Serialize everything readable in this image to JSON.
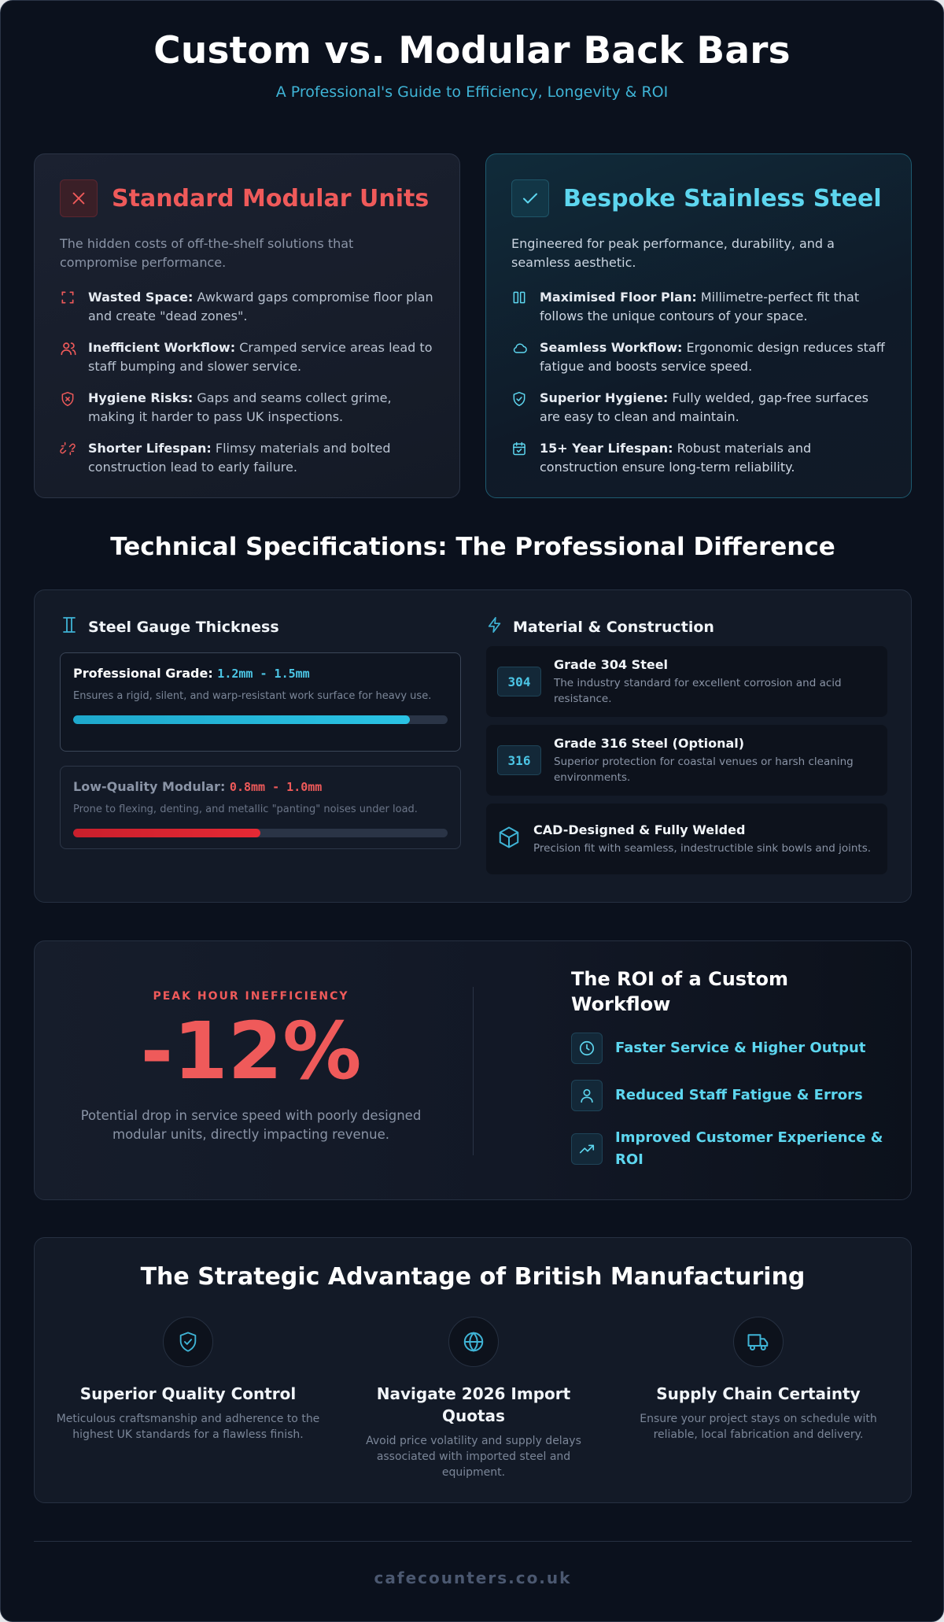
{
  "header": {
    "title": "Custom vs. Modular Back Bars",
    "subtitle": "A Professional's Guide to Efficiency, Longevity & ROI"
  },
  "modular": {
    "title": "Standard Modular Units",
    "description": "The hidden costs of off-the-shelf solutions that compromise performance.",
    "points": [
      {
        "icon": "dashed-frame-icon",
        "label": "Wasted Space:",
        "text": "Awkward gaps compromise floor plan and create \"dead zones\"."
      },
      {
        "icon": "users-icon",
        "label": "Inefficient Workflow:",
        "text": "Cramped service areas lead to staff bumping and slower service."
      },
      {
        "icon": "shield-x-icon",
        "label": "Hygiene Risks:",
        "text": "Gaps and seams collect grime, making it harder to pass UK inspections."
      },
      {
        "icon": "broken-link-icon",
        "label": "Shorter Lifespan:",
        "text": "Flimsy materials and bolted construction lead to early failure."
      }
    ]
  },
  "bespoke": {
    "title": "Bespoke Stainless Steel",
    "description": "Engineered for peak performance, durability, and a seamless aesthetic.",
    "points": [
      {
        "icon": "columns-icon",
        "label": "Maximised Floor Plan:",
        "text": "Millimetre-perfect fit that follows the unique contours of your space."
      },
      {
        "icon": "cloud-icon",
        "label": "Seamless Workflow:",
        "text": "Ergonomic design reduces staff fatigue and boosts service speed."
      },
      {
        "icon": "shield-check-icon",
        "label": "Superior Hygiene:",
        "text": "Fully welded, gap-free surfaces are easy to clean and maintain."
      },
      {
        "icon": "calendar-check-icon",
        "label": "15+ Year Lifespan:",
        "text": "Robust materials and construction ensure long-term reliability."
      }
    ]
  },
  "tech": {
    "title": "Technical Specifications: The Professional Difference",
    "gauge": {
      "heading": "Steel Gauge Thickness",
      "professional": {
        "label": "Professional Grade:",
        "value": "1.2mm - 1.5mm",
        "description": "Ensures a rigid, silent, and warp-resistant work surface for heavy use.",
        "fill_fraction": 0.9
      },
      "low": {
        "label": "Low-Quality Modular:",
        "value": "0.8mm - 1.0mm",
        "description": "Prone to flexing, denting, and metallic \"panting\" noises under load.",
        "fill_fraction": 0.5
      }
    },
    "material": {
      "heading": "Material & Construction",
      "items": [
        {
          "badge": "304",
          "title": "Grade 304 Steel",
          "description": "The industry standard for excellent corrosion and acid resistance."
        },
        {
          "badge": "316",
          "title": "Grade 316 Steel (Optional)",
          "description": "Superior protection for coastal venues or harsh cleaning environments."
        },
        {
          "icon": "cube-icon",
          "title": "CAD-Designed & Fully Welded",
          "description": "Precision fit with seamless, indestructible sink bowls and joints."
        }
      ]
    }
  },
  "roi": {
    "peak_label": "PEAK HOUR INEFFICIENCY",
    "peak_value": "-12%",
    "peak_description": "Potential drop in service speed with poorly designed modular units, directly impacting revenue.",
    "title": "The ROI of a Custom Workflow",
    "items": [
      {
        "icon": "clock-icon",
        "text": "Faster Service & Higher Output"
      },
      {
        "icon": "user-icon",
        "text": "Reduced Staff Fatigue & Errors"
      },
      {
        "icon": "trending-up-icon",
        "text": "Improved Customer Experience & ROI"
      }
    ]
  },
  "british": {
    "title": "The Strategic Advantage of British Manufacturing",
    "features": [
      {
        "icon": "shield-check-icon",
        "title": "Superior Quality Control",
        "description": "Meticulous craftsmanship and adherence to the highest UK standards for a flawless finish."
      },
      {
        "icon": "globe-icon",
        "title": "Navigate 2026 Import Quotas",
        "description": "Avoid price volatility and supply delays associated with imported steel and equipment."
      },
      {
        "icon": "truck-icon",
        "title": "Supply Chain Certainty",
        "description": "Ensure your project stays on schedule with reliable, local fabrication and delivery."
      }
    ]
  },
  "footer": {
    "site": "cafecounters.co.uk"
  },
  "colors": {
    "accent": "#5dd6ef",
    "danger": "#ef5a5a",
    "background": "#0b111d"
  }
}
